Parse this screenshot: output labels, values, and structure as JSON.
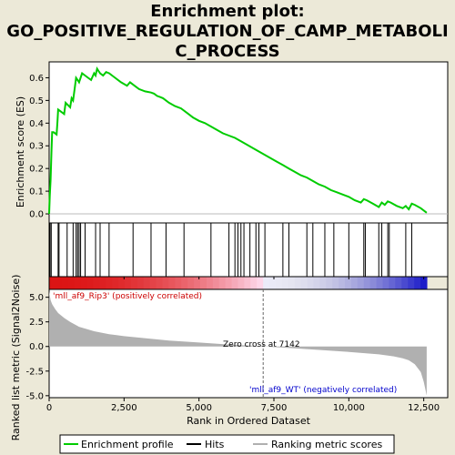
{
  "chart_data": {
    "type": "line",
    "title_lines": [
      "Enrichment plot:",
      "GO_POSITIVE_REGULATION_OF_CAMP_METABOLI",
      "C_PROCESS"
    ],
    "colors": {
      "enrichment_line": "#00cc00",
      "hits": "#000000",
      "ranking_metric": "#b0b0b0",
      "zero_cross": "#666666",
      "positive_label": "#cc0000",
      "negative_label": "#0000cc"
    },
    "top_panel": {
      "ylabel": "Enrichment score (ES)",
      "ylim": [
        -0.04,
        0.67
      ],
      "yticks": [
        0.0,
        0.1,
        0.2,
        0.3,
        0.4,
        0.5,
        0.6
      ],
      "ytick_labels": [
        "0.0",
        "0.1",
        "0.2",
        "0.3",
        "0.4",
        "0.5",
        "0.6"
      ],
      "es_profile": {
        "x": [
          0,
          20,
          50,
          80,
          100,
          150,
          250,
          280,
          300,
          350,
          500,
          550,
          700,
          750,
          800,
          850,
          900,
          950,
          1000,
          1100,
          1200,
          1300,
          1400,
          1500,
          1550,
          1600,
          1650,
          1700,
          1800,
          1900,
          2000,
          2100,
          2200,
          2400,
          2600,
          2700,
          2800,
          2900,
          3000,
          3200,
          3400,
          3500,
          3600,
          3700,
          3800,
          4000,
          4200,
          4400,
          4600,
          4800,
          5000,
          5200,
          5400,
          5600,
          5800,
          6000,
          6200,
          6400,
          6600,
          6800,
          7000,
          7200,
          7400,
          7600,
          7800,
          8000,
          8200,
          8400,
          8600,
          8800,
          9000,
          9200,
          9400,
          9600,
          9800,
          10000,
          10200,
          10400,
          10500,
          10600,
          10800,
          11000,
          11100,
          11200,
          11300,
          11400,
          11600,
          11800,
          11900,
          12000,
          12100,
          12200,
          12400,
          12600
        ],
        "y": [
          0.0,
          0.08,
          0.15,
          0.28,
          0.36,
          0.36,
          0.35,
          0.41,
          0.46,
          0.455,
          0.44,
          0.49,
          0.47,
          0.51,
          0.5,
          0.55,
          0.6,
          0.59,
          0.58,
          0.62,
          0.61,
          0.6,
          0.59,
          0.62,
          0.61,
          0.64,
          0.63,
          0.62,
          0.61,
          0.625,
          0.62,
          0.61,
          0.6,
          0.58,
          0.565,
          0.58,
          0.57,
          0.56,
          0.55,
          0.54,
          0.535,
          0.53,
          0.52,
          0.515,
          0.51,
          0.49,
          0.475,
          0.465,
          0.445,
          0.425,
          0.41,
          0.4,
          0.385,
          0.37,
          0.355,
          0.345,
          0.335,
          0.32,
          0.305,
          0.29,
          0.275,
          0.26,
          0.245,
          0.23,
          0.215,
          0.2,
          0.185,
          0.17,
          0.16,
          0.145,
          0.13,
          0.12,
          0.105,
          0.095,
          0.085,
          0.075,
          0.06,
          0.05,
          0.065,
          0.06,
          0.045,
          0.03,
          0.05,
          0.04,
          0.055,
          0.05,
          0.035,
          0.025,
          0.035,
          0.02,
          0.045,
          0.04,
          0.025,
          0.005
        ]
      }
    },
    "hits_x": [
      30,
      70,
      300,
      330,
      600,
      800,
      900,
      950,
      1000,
      1050,
      1200,
      1550,
      1700,
      2000,
      2800,
      3400,
      3900,
      4500,
      5400,
      6000,
      6200,
      6300,
      6400,
      6500,
      6700,
      6900,
      7000,
      7200,
      7800,
      8000,
      8600,
      8800,
      9200,
      9500,
      10000,
      10500,
      10550,
      11000,
      11100,
      11300,
      11350,
      11900,
      12100
    ],
    "colorbar_ticks": [
      0,
      2500,
      5000,
      7500,
      10000,
      12500
    ],
    "bottom_panel": {
      "ylabel": "Ranked list metric (Signal2Noise)",
      "ylim": [
        -5.2,
        5.8
      ],
      "yticks": [
        5.0,
        2.5,
        0.0,
        -2.5,
        -5.0
      ],
      "ytick_labels": [
        "5.0",
        "2.5",
        "0.0",
        "-2.5",
        "-5.0"
      ],
      "metric_curve": {
        "x": [
          0,
          50,
          100,
          200,
          300,
          500,
          700,
          1000,
          1500,
          2000,
          2500,
          3000,
          3500,
          4000,
          5000,
          6000,
          7000,
          7142,
          8000,
          9000,
          10000,
          11000,
          11500,
          11800,
          12000,
          12200,
          12400,
          12500,
          12600
        ],
        "y": [
          5.6,
          4.7,
          4.3,
          3.8,
          3.4,
          2.9,
          2.5,
          2.0,
          1.55,
          1.25,
          1.05,
          0.9,
          0.75,
          0.6,
          0.4,
          0.2,
          0.05,
          0.0,
          -0.15,
          -0.35,
          -0.55,
          -0.8,
          -1.0,
          -1.2,
          -1.4,
          -1.8,
          -2.6,
          -3.6,
          -5.0
        ]
      },
      "positive_label": "'mll_af9_Rip3' (positively correlated)",
      "negative_label": "'mll_af9_WT' (negatively correlated)",
      "zero_cross_label": "Zero cross at 7142",
      "zero_cross_x": 7142
    },
    "xaxis": {
      "label": "Rank in Ordered Dataset",
      "xlim": [
        0,
        13300
      ],
      "ticks": [
        0,
        2500,
        5000,
        7500,
        10000,
        12500
      ],
      "tick_labels": [
        "0",
        "2,500",
        "5,000",
        "7,500",
        "10,000",
        "12,500"
      ]
    },
    "legend": {
      "placement": "bottom",
      "entries": [
        "Enrichment profile",
        "Hits",
        "Ranking metric scores"
      ]
    }
  }
}
